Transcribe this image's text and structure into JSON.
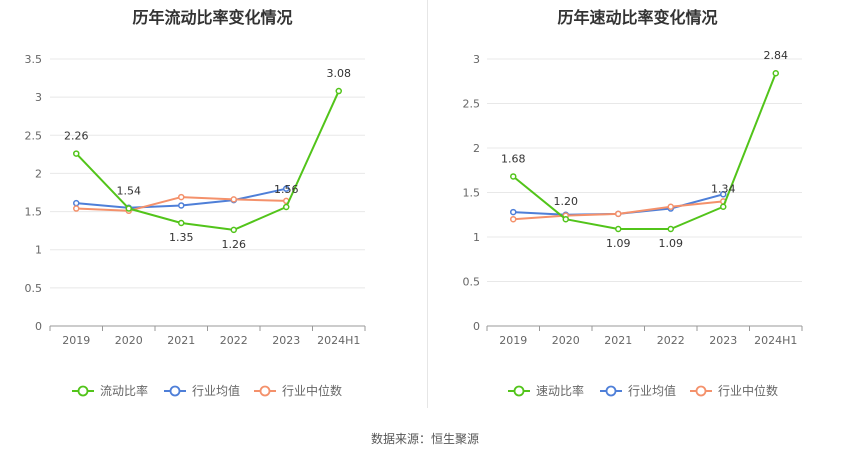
{
  "source": "数据来源：恒生聚源",
  "chart_data": [
    {
      "type": "line",
      "title": "历年流动比率变化情况",
      "categories": [
        "2019",
        "2020",
        "2021",
        "2022",
        "2023",
        "2024H1"
      ],
      "yticks": [
        "0",
        "0.5",
        "1",
        "1.5",
        "2",
        "2.5",
        "3",
        "3.5"
      ],
      "ylim": [
        0,
        3.5
      ],
      "grid": true,
      "legend_position": "bottom",
      "series": [
        {
          "name": "流动比率",
          "color": "#52c41a",
          "values": [
            2.26,
            1.54,
            1.35,
            1.26,
            1.56,
            3.08
          ],
          "labels": [
            "2.26",
            "1.54",
            "1.35",
            "1.26",
            "1.56",
            "3.08"
          ]
        },
        {
          "name": "行业均值",
          "color": "#4e7fd8",
          "values": [
            1.61,
            1.55,
            1.58,
            1.65,
            1.8,
            null
          ],
          "labels": []
        },
        {
          "name": "行业中位数",
          "color": "#f4916b",
          "values": [
            1.54,
            1.51,
            1.69,
            1.66,
            1.64,
            null
          ],
          "labels": []
        }
      ]
    },
    {
      "type": "line",
      "title": "历年速动比率变化情况",
      "categories": [
        "2019",
        "2020",
        "2021",
        "2022",
        "2023",
        "2024H1"
      ],
      "yticks": [
        "0",
        "0.5",
        "1",
        "1.5",
        "2",
        "2.5",
        "3"
      ],
      "ylim": [
        0,
        3
      ],
      "grid": true,
      "legend_position": "bottom",
      "series": [
        {
          "name": "速动比率",
          "color": "#52c41a",
          "values": [
            1.68,
            1.2,
            1.09,
            1.09,
            1.34,
            2.84
          ],
          "labels": [
            "1.68",
            "1.20",
            "1.09",
            "1.09",
            "1.34",
            "2.84"
          ]
        },
        {
          "name": "行业均值",
          "color": "#4e7fd8",
          "values": [
            1.28,
            1.25,
            1.26,
            1.32,
            1.48,
            null
          ],
          "labels": []
        },
        {
          "name": "行业中位数",
          "color": "#f4916b",
          "values": [
            1.2,
            1.24,
            1.26,
            1.34,
            1.4,
            null
          ],
          "labels": []
        }
      ]
    }
  ]
}
